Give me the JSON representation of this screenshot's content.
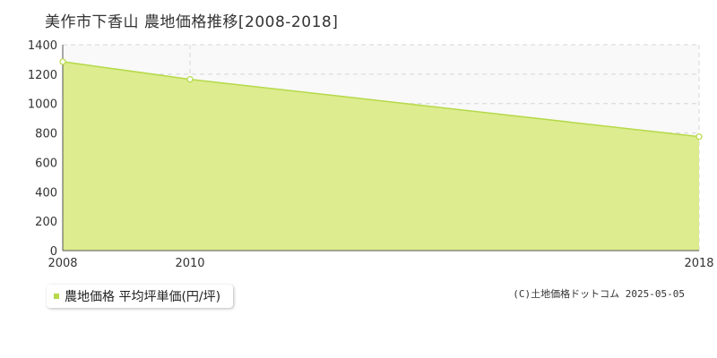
{
  "title": "美作市下香山 農地価格推移[2008-2018]",
  "legend": {
    "label": "農地価格 平均坪単価(円/坪)"
  },
  "credit": "(C)土地価格ドットコム 2025-05-05",
  "colors": {
    "fill": "#dcec8e",
    "line": "#b5d949",
    "marker_fill": "#ffffff",
    "grid": "#d6d6d6",
    "plot_bg": "#f9f9f9",
    "legend_swatch": "#b5d949"
  },
  "chart_data": {
    "type": "area",
    "title": "美作市下香山 農地価格推移[2008-2018]",
    "xlabel": "",
    "ylabel": "",
    "x": [
      2008,
      2010,
      2018
    ],
    "xticks": [
      "2008",
      "2010",
      "2018"
    ],
    "xlim": [
      2008,
      2018
    ],
    "ylim": [
      0,
      1400
    ],
    "yticks": [
      0,
      200,
      400,
      600,
      800,
      1000,
      1200,
      1400
    ],
    "grid": true,
    "legend_position": "bottom-left",
    "series": [
      {
        "name": "農地価格 平均坪単価(円/坪)",
        "values": [
          1285,
          1165,
          775
        ]
      }
    ]
  }
}
